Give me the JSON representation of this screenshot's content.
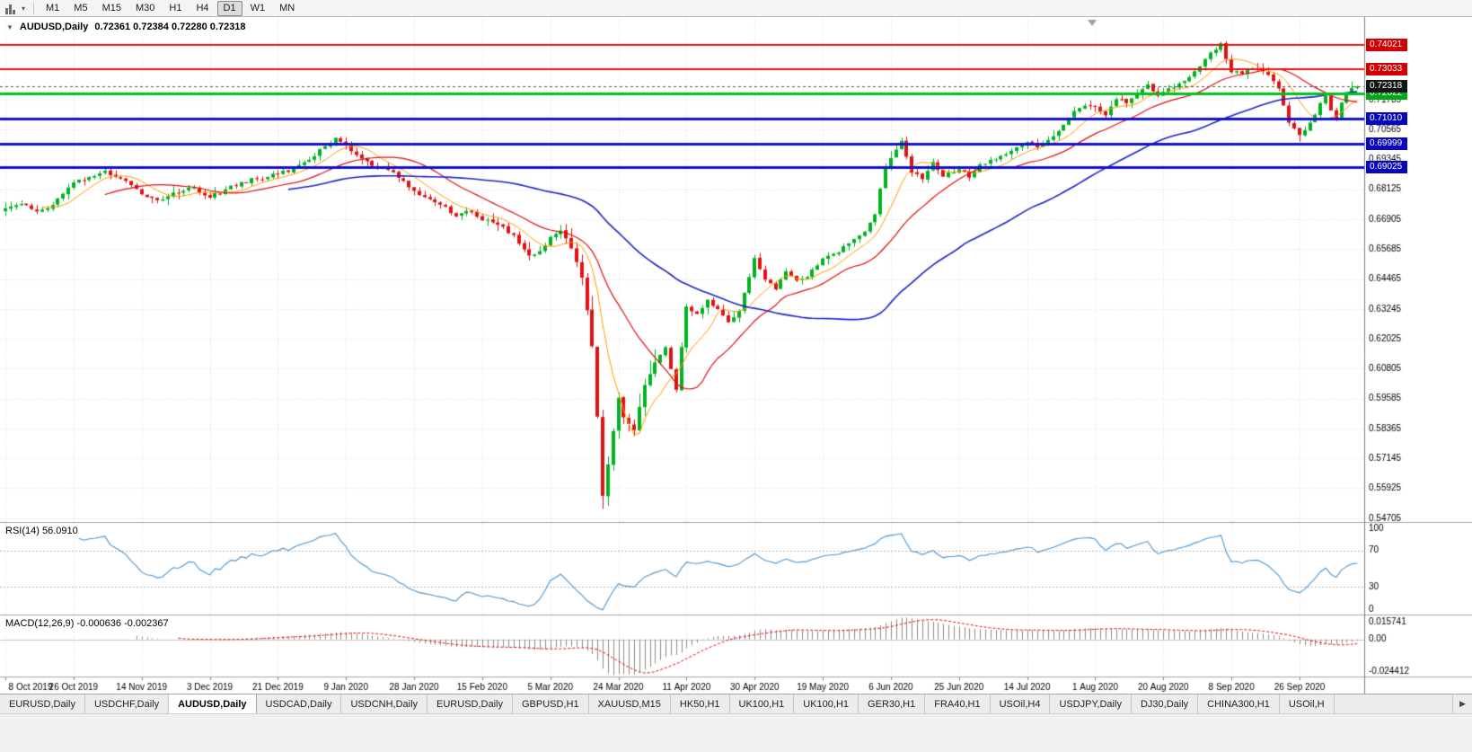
{
  "toolbar": {
    "caret_glyph": "▾",
    "timeframes": [
      {
        "label": "M1"
      },
      {
        "label": "M5"
      },
      {
        "label": "M15"
      },
      {
        "label": "M30"
      },
      {
        "label": "H1"
      },
      {
        "label": "H4"
      },
      {
        "label": "D1",
        "active": true
      },
      {
        "label": "W1"
      },
      {
        "label": "MN"
      }
    ]
  },
  "chart": {
    "title_symbol": "AUDUSD,Daily",
    "title_ohlc": "0.72361 0.72384 0.72280 0.72318",
    "collapse_glyph": "▼",
    "colors": {
      "background": "#ffffff",
      "grid": "#dedede",
      "up": "#00b321",
      "down": "#e21212",
      "axis_text": "#000000",
      "separator": "#a6a6a6",
      "current_badge": "#151515",
      "macd_zero": "#c8c8c8",
      "shift_marker": "#a0a0a0",
      "bid_line": "#555555"
    }
  },
  "chart_data": {
    "type": "candlestick",
    "symbol": "AUDUSD",
    "timeframe": "Daily",
    "num_candles": 259,
    "y_range": [
      0.5455,
      0.7515
    ],
    "y_ticks": [
      "0.71785",
      "0.70565",
      "0.69345",
      "0.68125",
      "0.66905",
      "0.65685",
      "0.64465",
      "0.63245",
      "0.62025",
      "0.60805",
      "0.59585",
      "0.58365",
      "0.57145",
      "0.55925",
      "0.54705"
    ],
    "x_labels": [
      {
        "idx": 0,
        "label": "8 Oct 2019"
      },
      {
        "idx": 13,
        "label": "26 Oct 2019"
      },
      {
        "idx": 26,
        "label": "14 Nov 2019"
      },
      {
        "idx": 39,
        "label": "3 Dec 2019"
      },
      {
        "idx": 52,
        "label": "21 Dec 2019"
      },
      {
        "idx": 65,
        "label": "9 Jan 2020"
      },
      {
        "idx": 78,
        "label": "28 Jan 2020"
      },
      {
        "idx": 91,
        "label": "15 Feb 2020"
      },
      {
        "idx": 104,
        "label": "5 Mar 2020"
      },
      {
        "idx": 117,
        "label": "24 Mar 2020"
      },
      {
        "idx": 130,
        "label": "11 Apr 2020"
      },
      {
        "idx": 143,
        "label": "30 Apr 2020"
      },
      {
        "idx": 156,
        "label": "19 May 2020"
      },
      {
        "idx": 169,
        "label": "6 Jun 2020"
      },
      {
        "idx": 182,
        "label": "25 Jun 2020"
      },
      {
        "idx": 195,
        "label": "14 Jul 2020"
      },
      {
        "idx": 208,
        "label": "1 Aug 2020"
      },
      {
        "idx": 221,
        "label": "20 Aug 2020"
      },
      {
        "idx": 234,
        "label": "8 Sep 2020"
      },
      {
        "idx": 247,
        "label": "26 Sep 2020"
      }
    ],
    "anchors": [
      [
        0,
        0.6735
      ],
      [
        3,
        0.6752
      ],
      [
        6,
        0.6722
      ],
      [
        9,
        0.6748
      ],
      [
        13,
        0.684
      ],
      [
        16,
        0.6862
      ],
      [
        19,
        0.6888
      ],
      [
        22,
        0.6856
      ],
      [
        26,
        0.6792
      ],
      [
        29,
        0.6768
      ],
      [
        31,
        0.6784
      ],
      [
        34,
        0.6806
      ],
      [
        36,
        0.6818
      ],
      [
        39,
        0.6778
      ],
      [
        42,
        0.6812
      ],
      [
        45,
        0.6842
      ],
      [
        48,
        0.6854
      ],
      [
        52,
        0.6876
      ],
      [
        55,
        0.6898
      ],
      [
        58,
        0.6932
      ],
      [
        61,
        0.6988
      ],
      [
        63,
        0.7022
      ],
      [
        65,
        0.6992
      ],
      [
        68,
        0.6938
      ],
      [
        71,
        0.6902
      ],
      [
        74,
        0.6882
      ],
      [
        78,
        0.6806
      ],
      [
        81,
        0.6772
      ],
      [
        84,
        0.6742
      ],
      [
        86,
        0.6702
      ],
      [
        88,
        0.6724
      ],
      [
        91,
        0.6686
      ],
      [
        94,
        0.6668
      ],
      [
        97,
        0.6626
      ],
      [
        100,
        0.6542
      ],
      [
        102,
        0.656
      ],
      [
        104,
        0.6618
      ],
      [
        106,
        0.6644
      ],
      [
        108,
        0.6572
      ],
      [
        110,
        0.6452
      ],
      [
        112,
        0.6172
      ],
      [
        113,
        0.5885
      ],
      [
        114,
        0.5562
      ],
      [
        115,
        0.569
      ],
      [
        116,
        0.5826
      ],
      [
        117,
        0.5962
      ],
      [
        118,
        0.5882
      ],
      [
        120,
        0.583
      ],
      [
        122,
        0.6014
      ],
      [
        124,
        0.6106
      ],
      [
        126,
        0.6168
      ],
      [
        128,
        0.5994
      ],
      [
        130,
        0.6334
      ],
      [
        132,
        0.6304
      ],
      [
        134,
        0.6362
      ],
      [
        136,
        0.6324
      ],
      [
        138,
        0.627
      ],
      [
        140,
        0.6316
      ],
      [
        143,
        0.6532
      ],
      [
        145,
        0.6444
      ],
      [
        147,
        0.6404
      ],
      [
        149,
        0.6478
      ],
      [
        151,
        0.644
      ],
      [
        153,
        0.6454
      ],
      [
        156,
        0.653
      ],
      [
        159,
        0.6554
      ],
      [
        162,
        0.661
      ],
      [
        164,
        0.664
      ],
      [
        166,
        0.671
      ],
      [
        168,
        0.6904
      ],
      [
        170,
        0.6974
      ],
      [
        171,
        0.701
      ],
      [
        173,
        0.688
      ],
      [
        175,
        0.6854
      ],
      [
        177,
        0.6924
      ],
      [
        179,
        0.6864
      ],
      [
        182,
        0.6894
      ],
      [
        184,
        0.686
      ],
      [
        186,
        0.6914
      ],
      [
        189,
        0.6934
      ],
      [
        192,
        0.697
      ],
      [
        195,
        0.7004
      ],
      [
        197,
        0.6984
      ],
      [
        199,
        0.7014
      ],
      [
        201,
        0.705
      ],
      [
        203,
        0.7104
      ],
      [
        205,
        0.7144
      ],
      [
        208,
        0.715
      ],
      [
        210,
        0.7114
      ],
      [
        212,
        0.718
      ],
      [
        214,
        0.7164
      ],
      [
        216,
        0.72
      ],
      [
        218,
        0.724
      ],
      [
        220,
        0.7194
      ],
      [
        222,
        0.7224
      ],
      [
        224,
        0.7244
      ],
      [
        226,
        0.727
      ],
      [
        228,
        0.7314
      ],
      [
        230,
        0.737
      ],
      [
        232,
        0.7408
      ],
      [
        233,
        0.7344
      ],
      [
        234,
        0.729
      ],
      [
        236,
        0.7284
      ],
      [
        238,
        0.7306
      ],
      [
        240,
        0.7294
      ],
      [
        242,
        0.7254
      ],
      [
        243,
        0.7224
      ],
      [
        244,
        0.7154
      ],
      [
        245,
        0.7084
      ],
      [
        247,
        0.7034
      ],
      [
        249,
        0.7084
      ],
      [
        251,
        0.7164
      ],
      [
        252,
        0.7192
      ],
      [
        253,
        0.7134
      ],
      [
        254,
        0.7104
      ],
      [
        255,
        0.7166
      ],
      [
        256,
        0.72
      ],
      [
        257,
        0.7226
      ],
      [
        258,
        0.72318
      ]
    ],
    "overrides": {
      "114": {
        "low": 0.5508
      },
      "232": {
        "high": 0.7414
      },
      "247": {
        "low": 0.7006
      },
      "258": {
        "close": 0.72318
      }
    },
    "moving_averages": [
      {
        "period": 8,
        "color": "#ff9d00",
        "width": 1
      },
      {
        "period": 20,
        "color": "#e01010",
        "width": 1.2
      },
      {
        "period": 55,
        "color": "#1f24c8",
        "width": 1.6
      }
    ],
    "hlines": [
      {
        "price": 0.74021,
        "label": "0.74021",
        "color": "#e81414",
        "badge": "#d40000",
        "width": 2
      },
      {
        "price": 0.73033,
        "label": "0.73033",
        "color": "#e81414",
        "badge": "#d40000",
        "width": 2
      },
      {
        "price": 0.72022,
        "label": "0.72022",
        "color": "#00c21c",
        "badge": "#00a816",
        "width": 3
      },
      {
        "price": 0.7101,
        "label": "0.71010",
        "color": "#1212d0",
        "badge": "#0707c0",
        "width": 3
      },
      {
        "price": 0.69999,
        "label": "0.69999",
        "color": "#1212d0",
        "badge": "#0707c0",
        "width": 3
      },
      {
        "price": 0.69025,
        "label": "0.69025",
        "color": "#1212d0",
        "badge": "#0707c0",
        "width": 3
      }
    ],
    "current_price": {
      "value": 0.72318,
      "label": "0.72318"
    }
  },
  "indicators": {
    "rsi": {
      "label": "RSI(14) 56.0910",
      "period": 14,
      "value": "56.0910",
      "levels": [
        100,
        70,
        30,
        0
      ],
      "dashed_levels": [
        70,
        30
      ],
      "color": "#4a96d2"
    },
    "macd": {
      "label": "MACD(12,26,9) -0.000636 -0.002367",
      "fast": 12,
      "slow": 26,
      "signal": 9,
      "main_value": "-0.000636",
      "signal_value": "-0.002367",
      "range": [
        -0.024412,
        0.015741
      ],
      "scale_labels": {
        "top": "0.015741",
        "zero": "0.00",
        "bottom": "-0.024412"
      },
      "bar_color": "#8c8c8c",
      "signal_color": "#e01010"
    }
  },
  "tabs": {
    "items": [
      "EURUSD,Daily",
      "USDCHF,Daily",
      "AUDUSD,Daily",
      "USDCAD,Daily",
      "USDCNH,Daily",
      "EURUSD,Daily",
      "GBPUSD,H1",
      "XAUUSD,M15",
      "HK50,H1",
      "UK100,H1",
      "UK100,H1",
      "GER30,H1",
      "FRA40,H1",
      "USOil,H4",
      "USDJPY,Daily",
      "DJ30,Daily",
      "CHINA300,H1",
      "USOil,H"
    ],
    "active_index": 2,
    "scroll_right_glyph": "▶"
  }
}
